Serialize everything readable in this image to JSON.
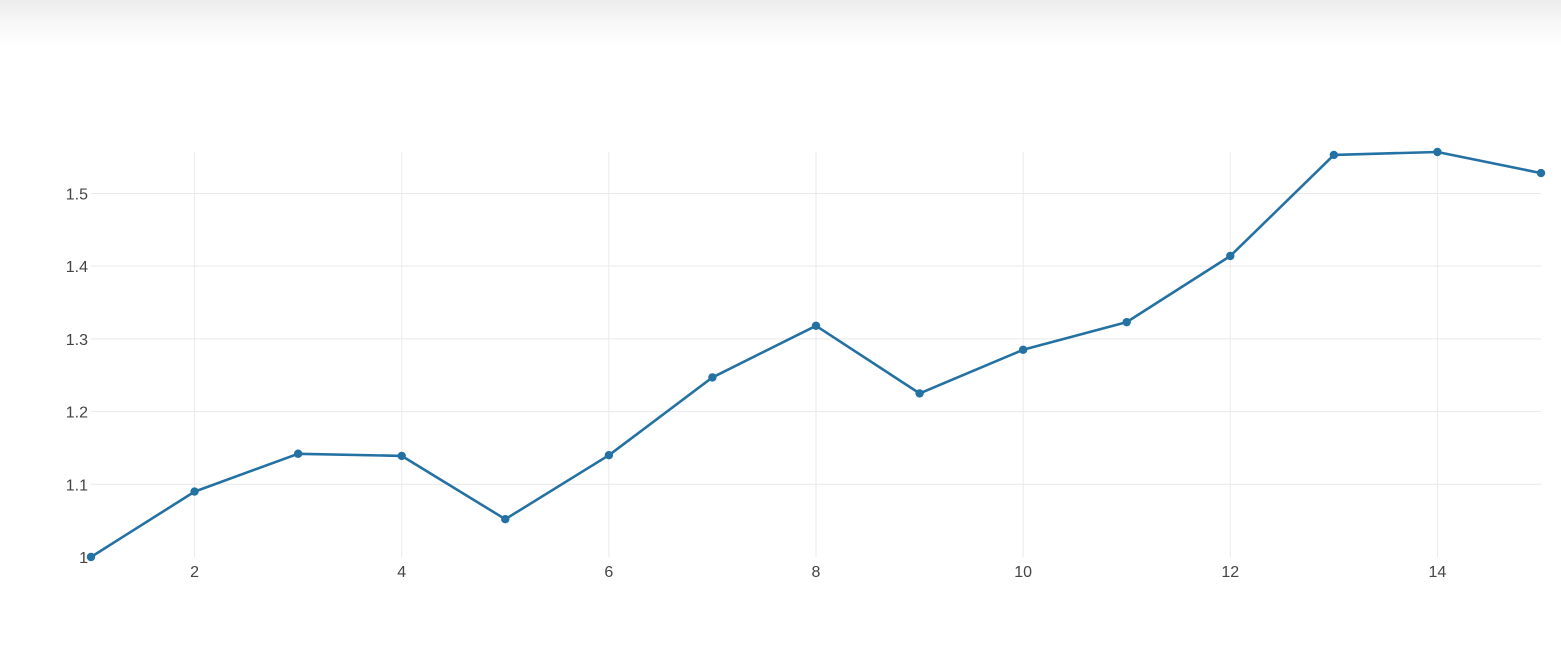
{
  "chart_data": {
    "type": "line",
    "title": "",
    "xlabel": "",
    "ylabel": "",
    "x": [
      1,
      2,
      3,
      4,
      5,
      6,
      7,
      8,
      9,
      10,
      11,
      12,
      13,
      14,
      15
    ],
    "series": [
      {
        "values": [
          1.0,
          1.09,
          1.142,
          1.139,
          1.052,
          1.14,
          1.247,
          1.318,
          1.225,
          1.285,
          1.323,
          1.414,
          1.553,
          1.557,
          1.528
        ],
        "color": "#2471a3"
      }
    ],
    "xlim": [
      1,
      15
    ],
    "ylim": [
      1.0,
      1.557
    ],
    "xticks": [
      "2",
      "4",
      "6",
      "8",
      "10",
      "12",
      "14"
    ],
    "xtick_values": [
      2,
      4,
      6,
      8,
      10,
      12,
      14
    ],
    "yticks": [
      "1",
      "1.1",
      "1.2",
      "1.3",
      "1.4",
      "1.5"
    ],
    "ytick_values": [
      1.0,
      1.1,
      1.2,
      1.3,
      1.4,
      1.5
    ],
    "grid": true,
    "markers": true
  }
}
